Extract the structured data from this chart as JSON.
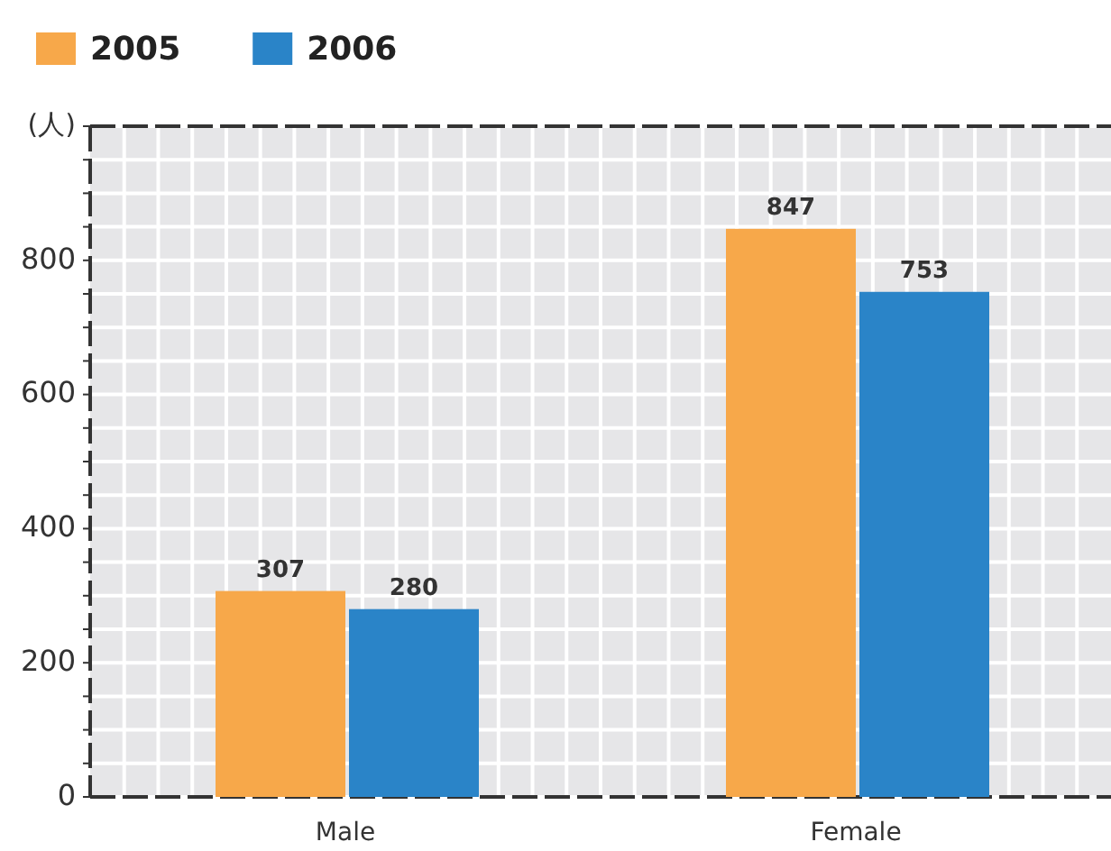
{
  "chart_data": {
    "type": "bar",
    "ylabel": "(人)",
    "categories": [
      "Male",
      "Female"
    ],
    "series": [
      {
        "name": "2005",
        "color": "#f7a84a",
        "values": [
          307,
          847
        ]
      },
      {
        "name": "2006",
        "color": "#2a84c8",
        "values": [
          280,
          753
        ]
      }
    ],
    "ylim": [
      0,
      1000
    ],
    "yticks": [
      0,
      {
        "value": 50,
        "label": null
      },
      {
        "value": 100,
        "label": null
      },
      {
        "value": 150,
        "label": null
      },
      200,
      {
        "value": 250,
        "label": null
      },
      {
        "value": 300,
        "label": null
      },
      {
        "value": 350,
        "label": null
      },
      400,
      {
        "value": 450,
        "label": null
      },
      {
        "value": 500,
        "label": null
      },
      {
        "value": 550,
        "label": null
      },
      600,
      {
        "value": 650,
        "label": null
      },
      {
        "value": 700,
        "label": null
      },
      {
        "value": 750,
        "label": null
      },
      800,
      {
        "value": 850,
        "label": null
      },
      {
        "value": 900,
        "label": null
      },
      {
        "value": 950,
        "label": null
      },
      {
        "value": 1000,
        "label": null
      }
    ],
    "data_labels": true,
    "grid": true,
    "legend": "top left"
  }
}
